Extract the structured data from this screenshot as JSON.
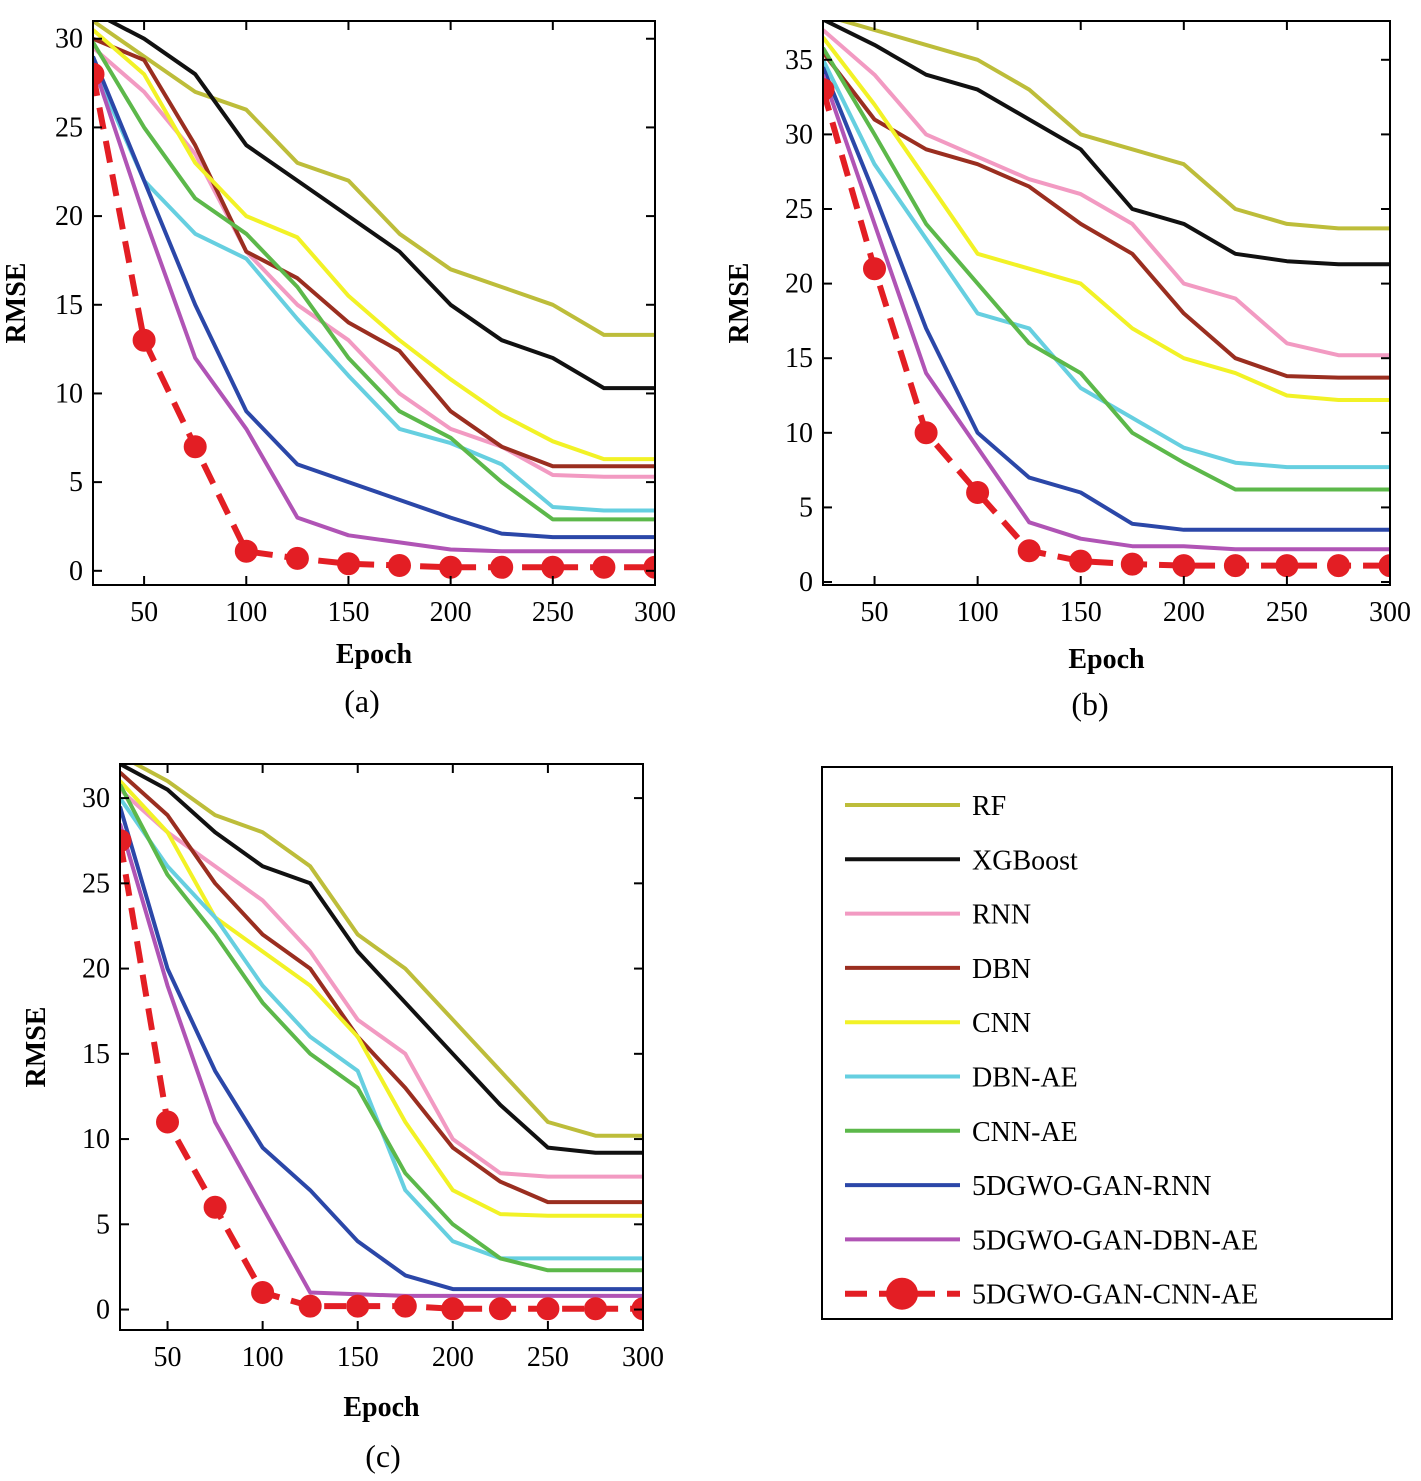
{
  "legend": {
    "items": [
      {
        "label": "RF",
        "color": "#bdbd3a",
        "dashed": false,
        "marker": false
      },
      {
        "label": "XGBoost",
        "color": "#111111",
        "dashed": false,
        "marker": false
      },
      {
        "label": "RNN",
        "color": "#f29ac2",
        "dashed": false,
        "marker": false
      },
      {
        "label": "DBN",
        "color": "#9a2e20",
        "dashed": false,
        "marker": false
      },
      {
        "label": "CNN",
        "color": "#f2f226",
        "dashed": false,
        "marker": false
      },
      {
        "label": "DBN-AE",
        "color": "#66cfe0",
        "dashed": false,
        "marker": false
      },
      {
        "label": "CNN-AE",
        "color": "#5cb84a",
        "dashed": false,
        "marker": false
      },
      {
        "label": "5DGWO-GAN-RNN",
        "color": "#2b47a8",
        "dashed": false,
        "marker": false
      },
      {
        "label": "5DGWO-GAN-DBN-AE",
        "color": "#b054b5",
        "dashed": false,
        "marker": false
      },
      {
        "label": "5DGWO-GAN-CNN-AE",
        "color": "#e31e24",
        "dashed": true,
        "marker": true
      }
    ]
  },
  "chart_data": [
    {
      "type": "line",
      "caption": "(a)",
      "xlabel": "Epoch",
      "ylabel": "RMSE",
      "xlim": [
        25,
        300
      ],
      "ylim": [
        -0.8,
        31
      ],
      "xticks": [
        "50",
        "100",
        "150",
        "200",
        "250",
        "300"
      ],
      "yticks": [
        "0",
        "5",
        "10",
        "15",
        "20",
        "25",
        "30"
      ],
      "x": [
        25,
        50,
        75,
        100,
        125,
        150,
        175,
        200,
        225,
        250,
        275,
        300
      ],
      "series": [
        {
          "name": "RF",
          "values": [
            31,
            29,
            27,
            26,
            23,
            22,
            19,
            17,
            16,
            15,
            13.3,
            13.3
          ]
        },
        {
          "name": "XGBoost",
          "values": [
            31.5,
            30,
            28,
            24,
            22,
            20,
            18,
            15,
            13,
            12,
            10.3,
            10.3
          ]
        },
        {
          "name": "RNN",
          "values": [
            29.5,
            27,
            23.5,
            18,
            15,
            13,
            10,
            8,
            7,
            5.4,
            5.3,
            5.3
          ]
        },
        {
          "name": "DBN",
          "values": [
            30,
            28.8,
            24,
            18,
            16.5,
            14,
            12.4,
            9,
            7,
            5.9,
            5.9,
            5.9
          ]
        },
        {
          "name": "CNN",
          "values": [
            30.5,
            28,
            23,
            20,
            18.8,
            15.5,
            13,
            10.8,
            8.8,
            7.3,
            6.3,
            6.3
          ]
        },
        {
          "name": "DBN-AE",
          "values": [
            28.5,
            22,
            19,
            17.6,
            14.2,
            11,
            8,
            7.2,
            6,
            3.6,
            3.4,
            3.4
          ]
        },
        {
          "name": "CNN-AE",
          "values": [
            29.8,
            25,
            21,
            19,
            16,
            12,
            9,
            7.5,
            5,
            2.9,
            2.9,
            2.9
          ]
        },
        {
          "name": "5DGWO-GAN-RNN",
          "values": [
            29,
            22,
            15,
            9,
            6,
            5,
            4,
            3,
            2.1,
            1.9,
            1.9,
            1.9
          ]
        },
        {
          "name": "5DGWO-GAN-DBN-AE",
          "values": [
            28.6,
            20,
            12,
            8,
            3,
            2,
            1.6,
            1.2,
            1.1,
            1.1,
            1.1,
            1.1
          ]
        },
        {
          "name": "5DGWO-GAN-CNN-AE",
          "values": [
            28,
            13,
            7,
            1.1,
            0.7,
            0.4,
            0.3,
            0.2,
            0.2,
            0.2,
            0.2,
            0.2
          ]
        }
      ]
    },
    {
      "type": "line",
      "caption": "(b)",
      "xlabel": "Epoch",
      "ylabel": "RMSE",
      "xlim": [
        25,
        300
      ],
      "ylim": [
        -0.2,
        37.6
      ],
      "xticks": [
        "50",
        "100",
        "150",
        "200",
        "250",
        "300"
      ],
      "yticks": [
        "0",
        "5",
        "10",
        "15",
        "20",
        "25",
        "30",
        "35"
      ],
      "x": [
        25,
        50,
        75,
        100,
        125,
        150,
        175,
        200,
        225,
        250,
        275,
        300
      ],
      "series": [
        {
          "name": "RF",
          "values": [
            38,
            37,
            36,
            35,
            33,
            30,
            29,
            28,
            25,
            24,
            23.7,
            23.7
          ]
        },
        {
          "name": "XGBoost",
          "values": [
            37.7,
            36,
            34,
            33,
            31,
            29,
            25,
            24,
            22,
            21.5,
            21.3,
            21.3
          ]
        },
        {
          "name": "RNN",
          "values": [
            37,
            34,
            30,
            28.5,
            27,
            26,
            24,
            20,
            19,
            16,
            15.2,
            15.2
          ]
        },
        {
          "name": "DBN",
          "values": [
            35.5,
            31,
            29,
            28,
            26.5,
            24,
            22,
            18,
            15,
            13.8,
            13.7,
            13.7
          ]
        },
        {
          "name": "CNN",
          "values": [
            36.5,
            32,
            27,
            22,
            21,
            20,
            17,
            15,
            14,
            12.5,
            12.2,
            12.2
          ]
        },
        {
          "name": "DBN-AE",
          "values": [
            35,
            28,
            23,
            18,
            17,
            13,
            11,
            9,
            8,
            7.7,
            7.7,
            7.7
          ]
        },
        {
          "name": "CNN-AE",
          "values": [
            35.8,
            30,
            24,
            20,
            16,
            14,
            10,
            8,
            6.2,
            6.2,
            6.2,
            6.2
          ]
        },
        {
          "name": "5DGWO-GAN-RNN",
          "values": [
            34.5,
            26,
            17,
            10,
            7,
            6,
            3.9,
            3.5,
            3.5,
            3.5,
            3.5,
            3.5
          ]
        },
        {
          "name": "5DGWO-GAN-DBN-AE",
          "values": [
            34,
            24,
            14,
            9,
            4,
            2.9,
            2.4,
            2.4,
            2.2,
            2.2,
            2.2,
            2.2
          ]
        },
        {
          "name": "5DGWO-GAN-CNN-AE",
          "values": [
            33,
            21,
            10,
            6,
            2.1,
            1.4,
            1.2,
            1.1,
            1.1,
            1.1,
            1.1,
            1.1
          ]
        }
      ]
    },
    {
      "type": "line",
      "caption": "(c)",
      "xlabel": "Epoch",
      "ylabel": "RMSE",
      "xlim": [
        25,
        300
      ],
      "ylim": [
        -1.2,
        32
      ],
      "xticks": [
        "50",
        "100",
        "150",
        "200",
        "250",
        "300"
      ],
      "yticks": [
        "0",
        "5",
        "10",
        "15",
        "20",
        "25",
        "30"
      ],
      "x": [
        25,
        50,
        75,
        100,
        125,
        150,
        175,
        200,
        225,
        250,
        275,
        300
      ],
      "series": [
        {
          "name": "RF",
          "values": [
            32.5,
            31,
            29,
            28,
            26,
            22,
            20,
            17,
            14,
            11,
            10.2,
            10.2
          ]
        },
        {
          "name": "XGBoost",
          "values": [
            32,
            30.5,
            28,
            26,
            25,
            21,
            18,
            15,
            12,
            9.5,
            9.2,
            9.2
          ]
        },
        {
          "name": "RNN",
          "values": [
            30.5,
            28,
            26,
            24,
            21,
            17,
            15,
            10,
            8,
            7.8,
            7.8,
            7.8
          ]
        },
        {
          "name": "DBN",
          "values": [
            31.5,
            29,
            25,
            22,
            20,
            16,
            13,
            9.5,
            7.5,
            6.3,
            6.3,
            6.3
          ]
        },
        {
          "name": "CNN",
          "values": [
            31,
            28,
            23,
            21,
            19,
            16,
            11,
            7,
            5.6,
            5.5,
            5.5,
            5.5
          ]
        },
        {
          "name": "DBN-AE",
          "values": [
            30,
            26,
            23,
            19,
            16,
            14,
            7,
            4,
            3,
            3,
            3,
            3
          ]
        },
        {
          "name": "CNN-AE",
          "values": [
            30.8,
            25.5,
            22,
            18,
            15,
            13,
            8,
            5,
            3,
            2.3,
            2.3,
            2.3
          ]
        },
        {
          "name": "5DGWO-GAN-RNN",
          "values": [
            29.5,
            20,
            14,
            9.5,
            7,
            4,
            2,
            1.2,
            1.2,
            1.2,
            1.2,
            1.2
          ]
        },
        {
          "name": "5DGWO-GAN-DBN-AE",
          "values": [
            28.5,
            19,
            11,
            6,
            1,
            0.9,
            0.8,
            0.8,
            0.8,
            0.8,
            0.8,
            0.8
          ]
        },
        {
          "name": "5DGWO-GAN-CNN-AE",
          "values": [
            27.5,
            11,
            6,
            1,
            0.2,
            0.2,
            0.2,
            0.05,
            0.05,
            0.05,
            0.05,
            0.05
          ]
        }
      ]
    }
  ]
}
